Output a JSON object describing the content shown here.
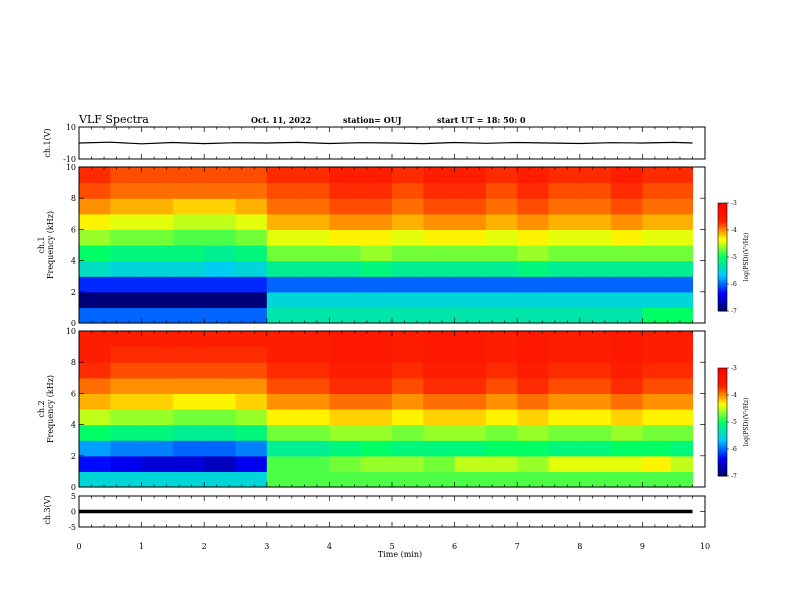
{
  "header": {
    "title": "VLF Spectra",
    "date": "Oct. 11, 2022",
    "station": "station= OUJ",
    "start": "start  UT =   18: 50: 0"
  },
  "colors": {
    "spectrum_scale": [
      "#000060",
      "#0000ff",
      "#00c8ff",
      "#00ff64",
      "#ffff00",
      "#ff2000",
      "#ff0000"
    ],
    "trace": "#000000"
  },
  "chart_data": [
    {
      "type": "line",
      "name": "ch1-waveform",
      "ylabel": "ch.1(V)",
      "ylim": [
        -10,
        10
      ],
      "yticks": [
        "10",
        "-10"
      ],
      "xlim": [
        0,
        10
      ],
      "x": [
        0,
        0.5,
        1,
        1.5,
        2,
        2.5,
        3,
        3.5,
        4,
        4.5,
        5,
        5.5,
        6,
        6.5,
        7,
        7.5,
        8,
        8.5,
        9,
        9.5,
        9.8
      ],
      "y": [
        0,
        0.5,
        -0.5,
        0.3,
        -0.4,
        0.2,
        0,
        0.4,
        -0.3,
        0.2,
        0,
        -0.4,
        0.3,
        -0.2,
        0.3,
        0,
        -0.3,
        0.2,
        0,
        0.4,
        0
      ]
    },
    {
      "type": "heatmap",
      "name": "ch1-spectrogram",
      "ylabel": "ch.1\nFrequency (kHz)",
      "ylim": [
        0,
        10
      ],
      "yticks": [
        "0",
        "2",
        "4",
        "6",
        "8",
        "10"
      ],
      "xlim": [
        0,
        10
      ],
      "data_xmax": 9.8,
      "freq_kHz": [
        0.5,
        1.5,
        2.5,
        3.5,
        4.5,
        5.5,
        6.5,
        7.5,
        8.5,
        9.5
      ],
      "time_min": [
        0.25,
        0.75,
        1.25,
        1.75,
        2.25,
        2.75,
        3.25,
        3.75,
        4.25,
        4.75,
        5.25,
        5.75,
        6.25,
        6.75,
        7.25,
        7.75,
        8.25,
        8.75,
        9.25,
        9.65
      ],
      "log_psd": [
        [
          -6.0,
          -6.0,
          -6.0,
          -6.0,
          -6.0,
          -6.0,
          -5.3,
          -5.3,
          -5.3,
          -5.3,
          -5.3,
          -5.3,
          -5.3,
          -5.3,
          -5.3,
          -5.3,
          -5.3,
          -5.3,
          -5.0,
          -5.0
        ],
        [
          -6.9,
          -6.9,
          -6.9,
          -6.9,
          -6.9,
          -6.9,
          -5.5,
          -5.5,
          -5.5,
          -5.5,
          -5.5,
          -5.5,
          -5.5,
          -5.5,
          -5.5,
          -5.5,
          -5.5,
          -5.5,
          -5.5,
          -5.5
        ],
        [
          -6.2,
          -6.2,
          -6.2,
          -6.2,
          -6.2,
          -6.2,
          -6.0,
          -6.0,
          -6.0,
          -6.0,
          -6.0,
          -6.0,
          -6.0,
          -6.0,
          -6.0,
          -6.0,
          -6.0,
          -6.0,
          -6.0,
          -6.0
        ],
        [
          -5.4,
          -5.5,
          -5.5,
          -5.5,
          -5.6,
          -5.5,
          -5.2,
          -5.2,
          -5.2,
          -5.1,
          -5.2,
          -5.2,
          -5.2,
          -5.2,
          -5.1,
          -5.2,
          -5.2,
          -5.2,
          -5.2,
          -5.2
        ],
        [
          -5.0,
          -5.1,
          -5.1,
          -5.1,
          -5.2,
          -5.1,
          -4.7,
          -4.7,
          -4.7,
          -4.6,
          -4.7,
          -4.7,
          -4.7,
          -4.7,
          -4.6,
          -4.7,
          -4.7,
          -4.7,
          -4.7,
          -4.7
        ],
        [
          -4.6,
          -4.7,
          -4.7,
          -4.8,
          -4.8,
          -4.7,
          -4.4,
          -4.4,
          -4.3,
          -4.3,
          -4.4,
          -4.3,
          -4.3,
          -4.4,
          -4.3,
          -4.4,
          -4.4,
          -4.3,
          -4.4,
          -4.4
        ],
        [
          -4.3,
          -4.4,
          -4.4,
          -4.5,
          -4.5,
          -4.4,
          -4.1,
          -4.1,
          -4.0,
          -4.0,
          -4.1,
          -4.0,
          -4.0,
          -4.1,
          -4.0,
          -4.1,
          -4.1,
          -4.0,
          -4.1,
          -4.1
        ],
        [
          -4.0,
          -4.1,
          -4.1,
          -4.2,
          -4.2,
          -4.1,
          -3.9,
          -3.9,
          -3.8,
          -3.8,
          -3.9,
          -3.8,
          -3.8,
          -3.9,
          -3.8,
          -3.9,
          -3.9,
          -3.8,
          -3.9,
          -3.9
        ],
        [
          -3.8,
          -3.9,
          -3.9,
          -3.9,
          -3.9,
          -3.9,
          -3.8,
          -3.8,
          -3.7,
          -3.7,
          -3.8,
          -3.7,
          -3.7,
          -3.8,
          -3.7,
          -3.8,
          -3.8,
          -3.7,
          -3.8,
          -3.8
        ],
        [
          -3.7,
          -3.8,
          -3.8,
          -3.8,
          -3.8,
          -3.8,
          -3.7,
          -3.7,
          -3.6,
          -3.6,
          -3.7,
          -3.6,
          -3.6,
          -3.7,
          -3.6,
          -3.7,
          -3.7,
          -3.6,
          -3.7,
          -3.7
        ]
      ],
      "colorbar": {
        "label": "log(PSD)(V²/Hz)",
        "range": [
          -7,
          -3
        ],
        "ticks": [
          "-3",
          "-4",
          "-5",
          "-6",
          "-7"
        ]
      }
    },
    {
      "type": "heatmap",
      "name": "ch2-spectrogram",
      "ylabel": "ch.2\nFrequency (kHz)",
      "ylim": [
        0,
        10
      ],
      "yticks": [
        "0",
        "2",
        "4",
        "6",
        "8",
        "10"
      ],
      "xlim": [
        0,
        10
      ],
      "data_xmax": 9.8,
      "freq_kHz": [
        0.5,
        1.5,
        2.5,
        3.5,
        4.5,
        5.5,
        6.5,
        7.5,
        8.5,
        9.5
      ],
      "time_min": [
        0.25,
        0.75,
        1.25,
        1.75,
        2.25,
        2.75,
        3.25,
        3.75,
        4.25,
        4.75,
        5.25,
        5.75,
        6.25,
        6.75,
        7.25,
        7.75,
        8.25,
        8.75,
        9.25,
        9.65
      ],
      "log_psd": [
        [
          -5.5,
          -5.5,
          -5.5,
          -5.5,
          -5.5,
          -5.5,
          -4.8,
          -4.8,
          -4.8,
          -4.8,
          -4.8,
          -4.8,
          -4.8,
          -4.8,
          -4.8,
          -4.8,
          -4.8,
          -4.8,
          -4.8,
          -4.8
        ],
        [
          -6.3,
          -6.4,
          -6.5,
          -6.5,
          -6.6,
          -6.4,
          -4.8,
          -4.8,
          -4.7,
          -4.6,
          -4.6,
          -4.7,
          -4.5,
          -4.5,
          -4.6,
          -4.4,
          -4.4,
          -4.4,
          -4.3,
          -4.5
        ],
        [
          -5.8,
          -5.9,
          -5.9,
          -6.0,
          -6.0,
          -5.9,
          -5.2,
          -5.2,
          -5.1,
          -5.0,
          -5.1,
          -5.1,
          -5.1,
          -5.0,
          -5.0,
          -5.1,
          -5.1,
          -5.0,
          -5.0,
          -5.1
        ],
        [
          -5.0,
          -5.1,
          -5.1,
          -5.2,
          -5.2,
          -5.1,
          -4.7,
          -4.7,
          -4.6,
          -4.6,
          -4.7,
          -4.6,
          -4.6,
          -4.7,
          -4.6,
          -4.7,
          -4.7,
          -4.6,
          -4.7,
          -4.7
        ],
        [
          -4.5,
          -4.6,
          -4.6,
          -4.7,
          -4.7,
          -4.6,
          -4.3,
          -4.3,
          -4.2,
          -4.2,
          -4.3,
          -4.2,
          -4.2,
          -4.3,
          -4.2,
          -4.3,
          -4.3,
          -4.2,
          -4.3,
          -4.3
        ],
        [
          -4.1,
          -4.2,
          -4.2,
          -4.3,
          -4.3,
          -4.2,
          -4.0,
          -4.0,
          -3.9,
          -3.9,
          -4.0,
          -3.9,
          -3.9,
          -4.0,
          -3.9,
          -4.0,
          -4.0,
          -3.9,
          -4.0,
          -4.0
        ],
        [
          -3.9,
          -4.0,
          -4.0,
          -4.0,
          -4.0,
          -4.0,
          -3.8,
          -3.8,
          -3.7,
          -3.7,
          -3.8,
          -3.7,
          -3.7,
          -3.8,
          -3.7,
          -3.8,
          -3.8,
          -3.7,
          -3.8,
          -3.8
        ],
        [
          -3.7,
          -3.8,
          -3.8,
          -3.8,
          -3.8,
          -3.8,
          -3.7,
          -3.7,
          -3.6,
          -3.6,
          -3.7,
          -3.6,
          -3.6,
          -3.7,
          -3.6,
          -3.7,
          -3.7,
          -3.6,
          -3.7,
          -3.7
        ],
        [
          -3.6,
          -3.7,
          -3.7,
          -3.7,
          -3.7,
          -3.7,
          -3.6,
          -3.6,
          -3.5,
          -3.5,
          -3.6,
          -3.5,
          -3.5,
          -3.6,
          -3.5,
          -3.6,
          -3.6,
          -3.5,
          -3.6,
          -3.6
        ],
        [
          -3.6,
          -3.6,
          -3.6,
          -3.6,
          -3.6,
          -3.6,
          -3.6,
          -3.6,
          -3.5,
          -3.5,
          -3.6,
          -3.5,
          -3.5,
          -3.6,
          -3.5,
          -3.6,
          -3.6,
          -3.5,
          -3.6,
          -3.6
        ]
      ],
      "colorbar": {
        "label": "log(PSD)(V²/Hz)",
        "range": [
          -7,
          -3
        ],
        "ticks": [
          "-3",
          "-4",
          "-5",
          "-6",
          "-7"
        ]
      }
    },
    {
      "type": "line",
      "name": "ch3-waveform",
      "ylabel": "ch.3(V)",
      "ylim": [
        -5,
        5
      ],
      "yticks": [
        "5",
        "0",
        "-5"
      ],
      "xlim": [
        0,
        10
      ],
      "x": [
        0,
        9.8
      ],
      "y": [
        0,
        0
      ]
    }
  ],
  "xaxis": {
    "label": "Time (min)",
    "ticks": [
      "0",
      "1",
      "2",
      "3",
      "4",
      "5",
      "6",
      "7",
      "8",
      "9",
      "10"
    ]
  }
}
